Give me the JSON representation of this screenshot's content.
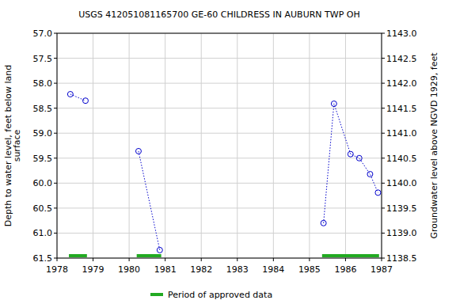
{
  "chart_data": {
    "type": "line",
    "title": "USGS 412051081165700 GE-60 CHILDRESS IN AUBURN TWP OH",
    "y_label_lines": [
      "Depth to water level, feet below land",
      "surface"
    ],
    "y2_label": "Groundwater level above NGVD 1929, feet",
    "x": [
      1978.37,
      1978.79,
      null,
      1980.26,
      1980.85,
      null,
      1985.39,
      1985.68,
      1986.14,
      1986.38,
      1986.68,
      1986.9
    ],
    "series": [
      {
        "name": "GE-60",
        "color": "#0000cc",
        "marker": "circle",
        "line_style": "dotted",
        "values": [
          58.22,
          58.35,
          null,
          59.36,
          61.34,
          null,
          60.8,
          58.41,
          59.42,
          59.5,
          59.82,
          60.19
        ]
      }
    ],
    "xlim": [
      1978,
      1987
    ],
    "xticks": [
      1978,
      1979,
      1980,
      1981,
      1982,
      1983,
      1984,
      1985,
      1986,
      1987
    ],
    "ylim": [
      61.5,
      57
    ],
    "yticks": [
      {
        "value": 57,
        "label": "57.0"
      },
      57.5,
      {
        "value": 58,
        "label": "58.0"
      },
      58.5,
      {
        "value": 59,
        "label": "59.0"
      },
      59.5,
      {
        "value": 60,
        "label": "60.0"
      },
      60.5,
      {
        "value": 61,
        "label": "61.0"
      },
      61.5
    ],
    "y2lim": [
      1138.5,
      1143
    ],
    "y2ticks": [
      {
        "value": 1143,
        "label": "1143.0"
      },
      1142.5,
      {
        "value": 1142,
        "label": "1142.0"
      },
      1141.5,
      {
        "value": 1141,
        "label": "1141.0"
      },
      1140.5,
      {
        "value": 1140,
        "label": "1140.0"
      },
      1139.5,
      {
        "value": 1139,
        "label": "1139.0"
      },
      1138.5
    ],
    "approved_periods": [
      [
        1978.33,
        1978.83
      ],
      [
        1980.21,
        1980.89
      ],
      [
        1985.35,
        1986.93
      ]
    ],
    "approved_color": "#22aa22",
    "legend_label": "Period of approved data",
    "grid": true
  }
}
